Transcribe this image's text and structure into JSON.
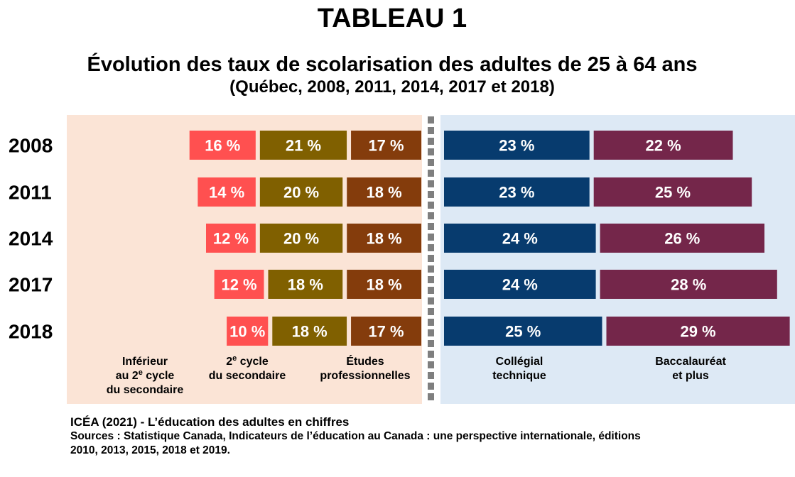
{
  "header": {
    "title": "TABLEAU 1",
    "subtitle": "Évolution des taux de scolarisation des adultes de 25 à 64 ans",
    "subtitle2": "(Québec, 2008, 2011, 2014, 2017 et 2018)"
  },
  "footer": {
    "source": "ICÉA (2021) - L’éducation des adultes en chiffres",
    "sources_line1": "Sources : Statistique Canada, Indicateurs de l’éducation au Canada : une perspective internationale, éditions",
    "sources_line2": "2010, 2013, 2015, 2018 et 2019."
  },
  "colors": {
    "left_panel_bg": "#fbe4d6",
    "right_panel_bg": "#dde9f5",
    "divider": "#7f7f7f"
  },
  "chart_data": {
    "type": "bar",
    "orientation": "horizontal-stacked",
    "unit": "%",
    "categories": [
      "2008",
      "2011",
      "2014",
      "2017",
      "2018"
    ],
    "left_group_categories": [
      [
        "Inférieur",
        "au 2e cycle",
        "du secondaire"
      ],
      [
        "2e cycle",
        "du secondaire"
      ],
      [
        "Études",
        "professionnelles"
      ]
    ],
    "right_group_categories": [
      [
        "Collégial",
        "technique"
      ],
      [
        "Baccalauréat",
        "et plus"
      ]
    ],
    "left_series": [
      {
        "key": "inf",
        "color": "#ff5050",
        "values": [
          16,
          14,
          12,
          12,
          10
        ]
      },
      {
        "key": "sec2",
        "color": "#806000",
        "values": [
          21,
          20,
          20,
          18,
          18
        ]
      },
      {
        "key": "pro",
        "color": "#843c0c",
        "values": [
          17,
          18,
          18,
          18,
          17
        ]
      }
    ],
    "right_series": [
      {
        "key": "col",
        "color": "#073b6e",
        "values": [
          23,
          23,
          24,
          24,
          25
        ]
      },
      {
        "key": "bac",
        "color": "#74264a",
        "values": [
          22,
          25,
          26,
          28,
          29
        ]
      }
    ],
    "data_labels": [
      [
        "16 %",
        "21 %",
        "17 %",
        "23 %",
        "22 %"
      ],
      [
        "14 %",
        "20 %",
        "18 %",
        "23 %",
        "25 %"
      ],
      [
        "12 %",
        "20 %",
        "18 %",
        "24 %",
        "26 %"
      ],
      [
        "12 %",
        "18 %",
        "18 %",
        "24 %",
        "28 %"
      ],
      [
        "10 %",
        "18 %",
        "17 %",
        "25 %",
        "29 %"
      ]
    ]
  }
}
